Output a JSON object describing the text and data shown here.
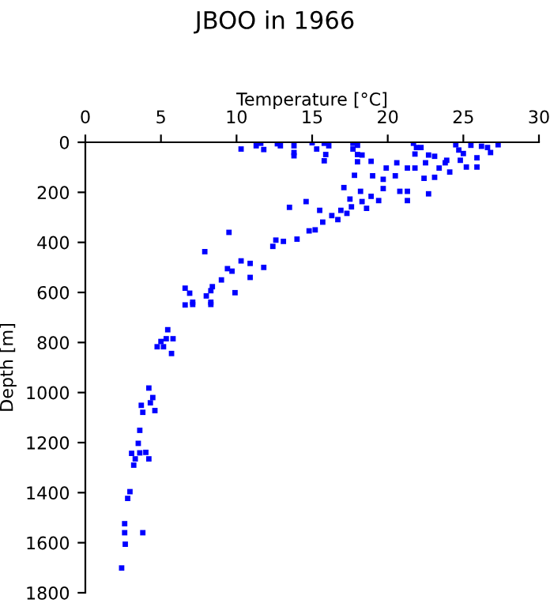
{
  "chart_data": {
    "type": "scatter",
    "title": "JBOO in 1966",
    "xlabel": "Temperature [°C]",
    "ylabel": "Depth [m]",
    "marker": "square",
    "grid": false,
    "xlim": [
      0,
      30
    ],
    "xticks": [
      0,
      5,
      10,
      15,
      20,
      25,
      30
    ],
    "ylim": [
      1800,
      0
    ],
    "yticks": [
      0,
      200,
      400,
      600,
      800,
      1000,
      1200,
      1400,
      1600,
      1800
    ],
    "series": [
      {
        "color": "#0000ff",
        "x": [
          10.3,
          11.3,
          11.6,
          11.8,
          12.7,
          12.9,
          13.8,
          13.8,
          13.8,
          15.0,
          15.3,
          15.8,
          15.8,
          15.9,
          16.1,
          17.7,
          18.0,
          17.7,
          18.0,
          18.3,
          18.0,
          17.8,
          18.9,
          19.0,
          19.9,
          19.7,
          20.6,
          20.5,
          21.7,
          21.9,
          22.2,
          21.8,
          22.7,
          22.5,
          23.1,
          21.8,
          22.4,
          23.1,
          23.8,
          23.4,
          24.1,
          24.5,
          24.7,
          24.8,
          25.2,
          25.5,
          25.9,
          26.2,
          26.8,
          27.3,
          25.9,
          25.0,
          26.6,
          23.9,
          21.3,
          20.8,
          21.3,
          22.7,
          21.3,
          19.7,
          19.4,
          18.9,
          18.2,
          18.3,
          18.6,
          17.1,
          17.5,
          17.6,
          17.3,
          16.9,
          16.3,
          16.7,
          15.7,
          15.5,
          14.6,
          13.5,
          15.2,
          14.8,
          14.0,
          13.1,
          12.6,
          12.4,
          9.5,
          7.9,
          10.9,
          10.3,
          9.4,
          9.7,
          9.0,
          10.9,
          11.8,
          8.4,
          8.3,
          8.0,
          9.9,
          6.6,
          6.9,
          7.1,
          8.3,
          6.6,
          7.1,
          8.3,
          5.45,
          5.35,
          5.8,
          5.17,
          4.75,
          5.7,
          5.0,
          4.2,
          4.46,
          4.3,
          3.7,
          3.8,
          4.6,
          3.6,
          3.5,
          3.06,
          3.6,
          4.0,
          3.3,
          4.2,
          3.2,
          2.95,
          2.8,
          2.6,
          2.6,
          3.8,
          2.64,
          2.4
        ],
        "values": [
          27,
          14,
          4,
          29,
          6,
          14,
          14,
          41,
          54,
          2,
          27,
          4,
          74,
          49,
          14,
          4,
          12,
          27,
          49,
          51,
          78,
          132,
          76,
          134,
          103,
          148,
          82,
          134,
          4,
          21,
          21,
          47,
          51,
          82,
          56,
          103,
          144,
          140,
          82,
          103,
          119,
          10,
          31,
          72,
          99,
          12,
          62,
          16,
          41,
          10,
          99,
          45,
          21,
          72,
          103,
          196,
          233,
          206,
          196,
          185,
          233,
          216,
          196,
          237,
          264,
          181,
          227,
          258,
          284,
          272,
          293,
          309,
          319,
          272,
          237,
          260,
          350,
          354,
          387,
          396,
          391,
          416,
          360,
          437,
          484,
          474,
          505,
          515,
          550,
          540,
          500,
          577,
          593,
          614,
          601,
          583,
          603,
          639,
          639,
          650,
          648,
          648,
          749,
          785,
          785,
          817,
          817,
          844,
          796,
          982,
          1020,
          1041,
          1051,
          1079,
          1072,
          1151,
          1203,
          1243,
          1241,
          1239,
          1265,
          1265,
          1290,
          1396,
          1423,
          1524,
          1560,
          1560,
          1606,
          1701
        ]
      }
    ]
  }
}
